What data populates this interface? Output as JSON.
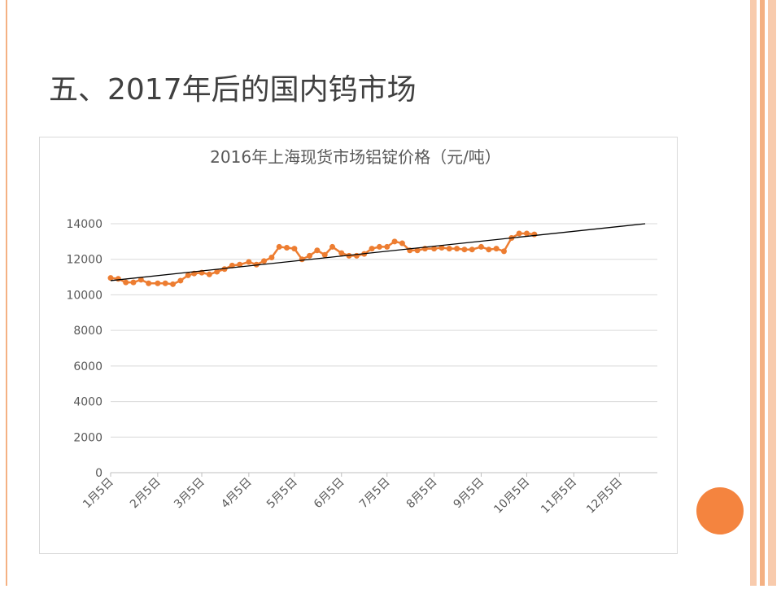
{
  "slide_title": "五、2017年后的国内钨市场",
  "chart_data": {
    "type": "line",
    "title": "2016年上海现货市场铝锭价格（元/吨）",
    "x": [
      "1月5日",
      "1月10日",
      "1月15日",
      "1月20日",
      "1月25日",
      "1月30日",
      "2月5日",
      "2月10日",
      "2月15日",
      "2月20日",
      "2月25日",
      "2月29日",
      "3月5日",
      "3月10日",
      "3月15日",
      "3月20日",
      "3月25日",
      "3月30日",
      "4月5日",
      "4月10日",
      "4月15日",
      "4月20日",
      "4月25日",
      "4月30日",
      "5月5日",
      "5月10日",
      "5月15日",
      "5月20日",
      "5月25日",
      "5月30日",
      "6月5日",
      "6月10日",
      "6月15日",
      "6月20日",
      "6月25日",
      "6月30日",
      "7月5日",
      "7月10日",
      "7月15日",
      "7月20日",
      "7月25日",
      "7月30日",
      "8月5日",
      "8月10日",
      "8月15日",
      "8月20日",
      "8月25日",
      "8月30日",
      "9月5日",
      "9月10日",
      "9月15日",
      "9月20日",
      "9月25日",
      "9月30日",
      "10月5日",
      "10月10日"
    ],
    "series": [
      {
        "color": "#ed7d31",
        "values": [
          10950,
          10900,
          10700,
          10700,
          10850,
          10650,
          10650,
          10650,
          10600,
          10800,
          11100,
          11200,
          11250,
          11150,
          11300,
          11450,
          11650,
          11700,
          11850,
          11700,
          11900,
          12100,
          12700,
          12650,
          12600,
          12000,
          12200,
          12500,
          12250,
          12700,
          12350,
          12200,
          12200,
          12300,
          12600,
          12700,
          12700,
          13000,
          12900,
          12500,
          12500,
          12600,
          12600,
          12650,
          12600,
          12600,
          12550,
          12550,
          12700,
          12550,
          12600,
          12450,
          13200,
          13450,
          13450,
          13400
        ]
      }
    ],
    "trendline": {
      "x": [
        "1月5日",
        "12月22日"
      ],
      "values": [
        10800,
        14000
      ],
      "color": "#000000"
    },
    "xlim": [
      "1月5日",
      "12月30日"
    ],
    "xticks": [
      "1月5日",
      "2月5日",
      "3月5日",
      "4月5日",
      "5月5日",
      "6月5日",
      "7月5日",
      "8月5日",
      "9月5日",
      "10月5日",
      "11月5日",
      "12月5日"
    ],
    "ylim": [
      0,
      14000
    ],
    "yticks": [
      0,
      2000,
      4000,
      6000,
      8000,
      10000,
      12000,
      14000
    ],
    "grid": true
  }
}
